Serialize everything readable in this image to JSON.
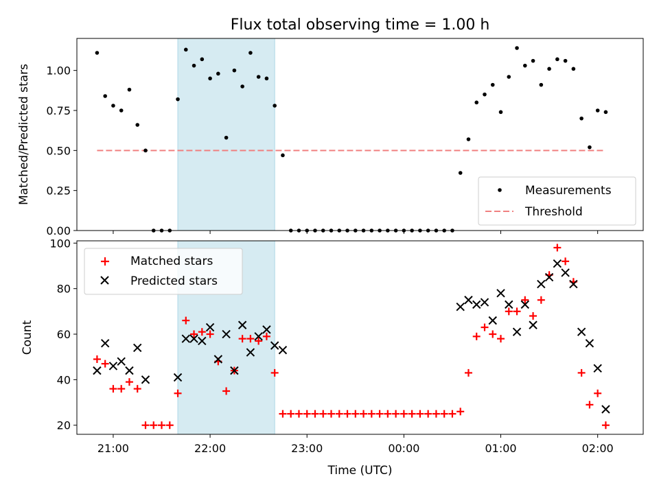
{
  "title": "Flux total observing time = 1.00 h",
  "colors": {
    "threshold": "#f08080",
    "highlight": "#add8e6",
    "matched": "#ff0000",
    "predicted": "#000000",
    "measurement": "#000000"
  },
  "chart_data": [
    {
      "type": "scatter",
      "ylabel": "Matched/Predicted stars",
      "ylim": [
        0,
        1.2
      ],
      "yticks": [
        "0.00",
        "0.25",
        "0.50",
        "0.75",
        "1.00"
      ],
      "ytick_values": [
        0,
        0.25,
        0.5,
        0.75,
        1.0
      ],
      "x_unit": "minutes from 20:00 UTC (axis prints clock times)",
      "xlim": [
        37.5,
        388.2
      ],
      "highlight_span": {
        "start": "21:40",
        "end": "22:40"
      },
      "legend": {
        "position": "lower right",
        "measurements_label": "Measurements",
        "threshold_label": "Threshold"
      },
      "threshold": {
        "value": 0.5,
        "from": "20:50",
        "to": "02:05"
      },
      "series": [
        {
          "name": "Measurements",
          "times": [
            "20:50",
            "20:55",
            "21:00",
            "21:05",
            "21:10",
            "21:15",
            "21:20",
            "21:25",
            "21:30",
            "21:35",
            "21:40",
            "21:45",
            "21:50",
            "21:55",
            "22:00",
            "22:05",
            "22:10",
            "22:15",
            "22:20",
            "22:25",
            "22:30",
            "22:35",
            "22:40",
            "22:45",
            "22:50",
            "22:55",
            "23:00",
            "23:05",
            "23:10",
            "23:15",
            "23:20",
            "23:25",
            "23:30",
            "23:35",
            "23:40",
            "23:45",
            "23:50",
            "23:55",
            "00:00",
            "00:05",
            "00:10",
            "00:15",
            "00:20",
            "00:25",
            "00:30",
            "00:35",
            "00:40",
            "00:45",
            "00:50",
            "00:55",
            "01:00",
            "01:05",
            "01:10",
            "01:15",
            "01:20",
            "01:25",
            "01:30",
            "01:35",
            "01:40",
            "01:45",
            "01:50",
            "01:55",
            "02:00",
            "02:05"
          ],
          "values": [
            1.11,
            0.84,
            0.78,
            0.75,
            0.88,
            0.66,
            0.5,
            0.0,
            0.0,
            0.0,
            0.82,
            1.13,
            1.03,
            1.07,
            0.95,
            0.98,
            0.58,
            1.0,
            0.9,
            1.11,
            0.96,
            0.95,
            0.78,
            0.47,
            0.0,
            0.0,
            0.0,
            0.0,
            0.0,
            0.0,
            0.0,
            0.0,
            0.0,
            0.0,
            0.0,
            0.0,
            0.0,
            0.0,
            0.0,
            0.0,
            0.0,
            0.0,
            0.0,
            0.0,
            0.0,
            0.36,
            0.57,
            0.8,
            0.85,
            0.91,
            0.74,
            0.96,
            1.14,
            1.03,
            1.06,
            0.91,
            1.01,
            1.07,
            1.06,
            1.01,
            0.7,
            0.52,
            0.75,
            0.74
          ]
        }
      ]
    },
    {
      "type": "scatter",
      "ylabel": "Count",
      "xlabel": "Time (UTC)",
      "ylim": [
        16,
        101
      ],
      "yticks": [
        "20",
        "40",
        "60",
        "80",
        "100"
      ],
      "ytick_values": [
        20,
        40,
        60,
        80,
        100
      ],
      "xticks": [
        "21:00",
        "22:00",
        "23:00",
        "00:00",
        "01:00",
        "02:00"
      ],
      "xtick_values": [
        60,
        120,
        180,
        240,
        300,
        360
      ],
      "xlim": [
        37.5,
        388.2
      ],
      "highlight_span": {
        "start": "21:40",
        "end": "22:40"
      },
      "legend": {
        "position": "upper left",
        "matched_label": "Matched stars",
        "predicted_label": "Predicted stars"
      },
      "series": [
        {
          "name": "Matched stars",
          "times": [
            "20:50",
            "20:55",
            "21:00",
            "21:05",
            "21:10",
            "21:15",
            "21:20",
            "21:25",
            "21:30",
            "21:35",
            "21:40",
            "21:45",
            "21:50",
            "21:55",
            "22:00",
            "22:05",
            "22:10",
            "22:15",
            "22:20",
            "22:25",
            "22:30",
            "22:35",
            "22:40",
            "22:45",
            "22:50",
            "22:55",
            "23:00",
            "23:05",
            "23:10",
            "23:15",
            "23:20",
            "23:25",
            "23:30",
            "23:35",
            "23:40",
            "23:45",
            "23:50",
            "23:55",
            "00:00",
            "00:05",
            "00:10",
            "00:15",
            "00:20",
            "00:25",
            "00:30",
            "00:35",
            "00:40",
            "00:45",
            "00:50",
            "00:55",
            "01:00",
            "01:05",
            "01:10",
            "01:15",
            "01:20",
            "01:25",
            "01:30",
            "01:35",
            "01:40",
            "01:45",
            "01:50",
            "01:55",
            "02:00",
            "02:05"
          ],
          "values": [
            49,
            47,
            36,
            36,
            39,
            36,
            20,
            20,
            20,
            20,
            34,
            66,
            60,
            61,
            60,
            48,
            35,
            44,
            58,
            58,
            57,
            59,
            43,
            25,
            25,
            25,
            25,
            25,
            25,
            25,
            25,
            25,
            25,
            25,
            25,
            25,
            25,
            25,
            25,
            25,
            25,
            25,
            25,
            25,
            25,
            26,
            43,
            59,
            63,
            60,
            58,
            70,
            70,
            75,
            68,
            75,
            86,
            98,
            92,
            83,
            43,
            29,
            34,
            20
          ]
        },
        {
          "name": "Predicted stars",
          "times": [
            "20:50",
            "20:55",
            "21:00",
            "21:05",
            "21:10",
            "21:15",
            "21:20",
            "21:40",
            "21:45",
            "21:50",
            "21:55",
            "22:00",
            "22:05",
            "22:10",
            "22:15",
            "22:20",
            "22:25",
            "22:30",
            "22:35",
            "22:40",
            "22:45",
            "00:35",
            "00:40",
            "00:45",
            "00:50",
            "00:55",
            "01:00",
            "01:05",
            "01:10",
            "01:15",
            "01:20",
            "01:25",
            "01:30",
            "01:35",
            "01:40",
            "01:45",
            "01:50",
            "01:55",
            "02:00",
            "02:05"
          ],
          "values": [
            44,
            56,
            46,
            48,
            44,
            54,
            40,
            41,
            58,
            58,
            57,
            63,
            49,
            60,
            44,
            64,
            52,
            59,
            62,
            55,
            53,
            72,
            75,
            73,
            74,
            66,
            78,
            73,
            61,
            73,
            64,
            82,
            85,
            91,
            87,
            82,
            61,
            56,
            45,
            27
          ]
        }
      ]
    }
  ]
}
